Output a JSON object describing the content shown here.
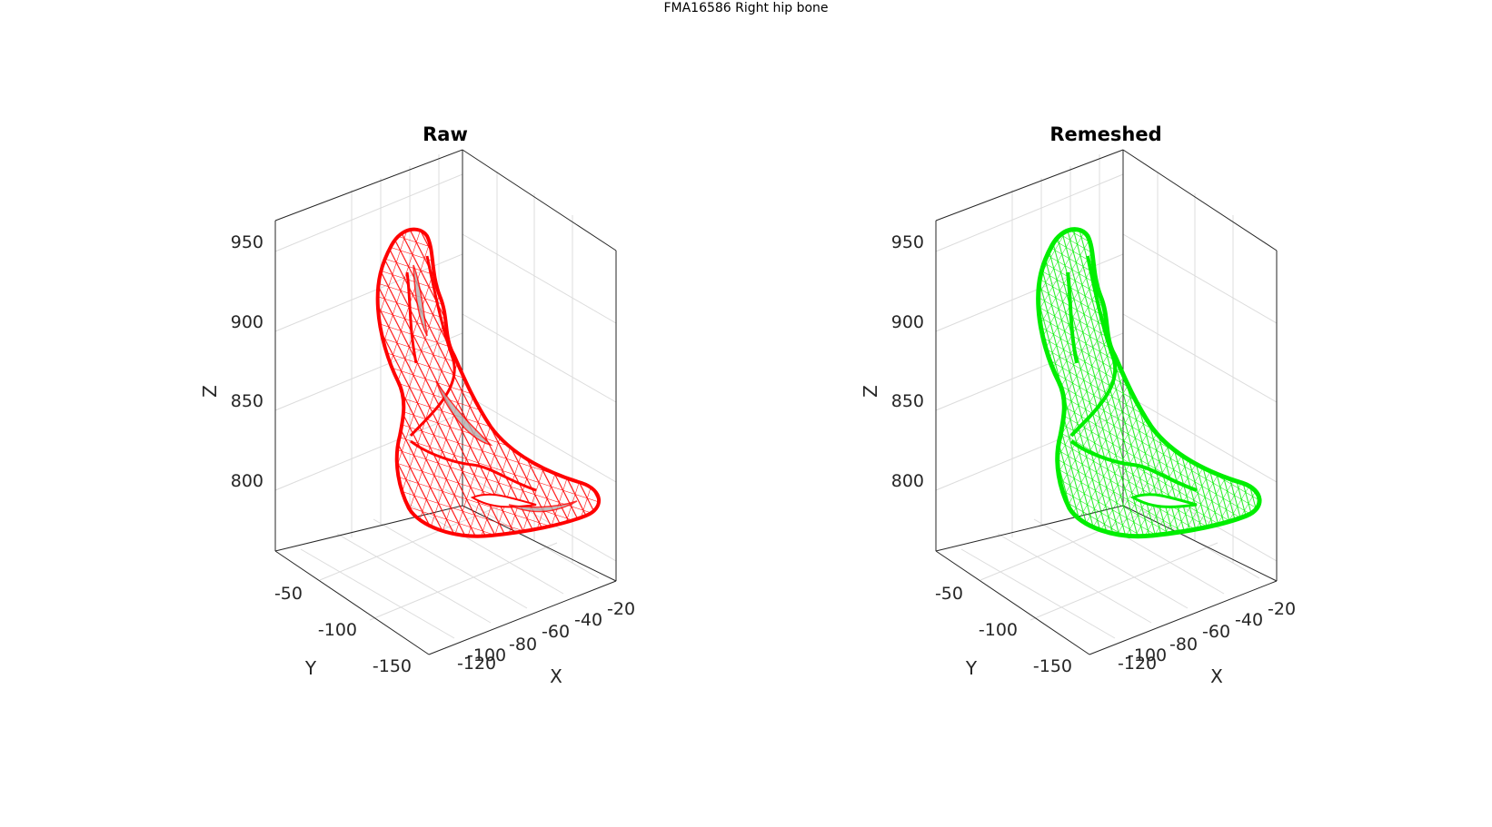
{
  "figure": {
    "title": "FMA16586 Right hip bone"
  },
  "panels": [
    {
      "title": "Raw",
      "mesh_color": "#ff0000",
      "face_color": "#b0b0b0",
      "z_ticks": [
        "950",
        "900",
        "850",
        "800"
      ],
      "y_ticks": [
        "-50",
        "-100",
        "-150"
      ],
      "x_ticks": [
        "-20",
        "-40",
        "-60",
        "-80",
        "-100",
        "-120"
      ],
      "z_label": "Z",
      "y_label": "Y",
      "x_label": "X"
    },
    {
      "title": "Remeshed",
      "mesh_color": "#00ee00",
      "face_color": "#ffffff",
      "z_ticks": [
        "950",
        "900",
        "850",
        "800"
      ],
      "y_ticks": [
        "-50",
        "-100",
        "-150"
      ],
      "x_ticks": [
        "-20",
        "-40",
        "-60",
        "-80",
        "-100",
        "-120"
      ],
      "z_label": "Z",
      "y_label": "Y",
      "x_label": "X"
    }
  ]
}
